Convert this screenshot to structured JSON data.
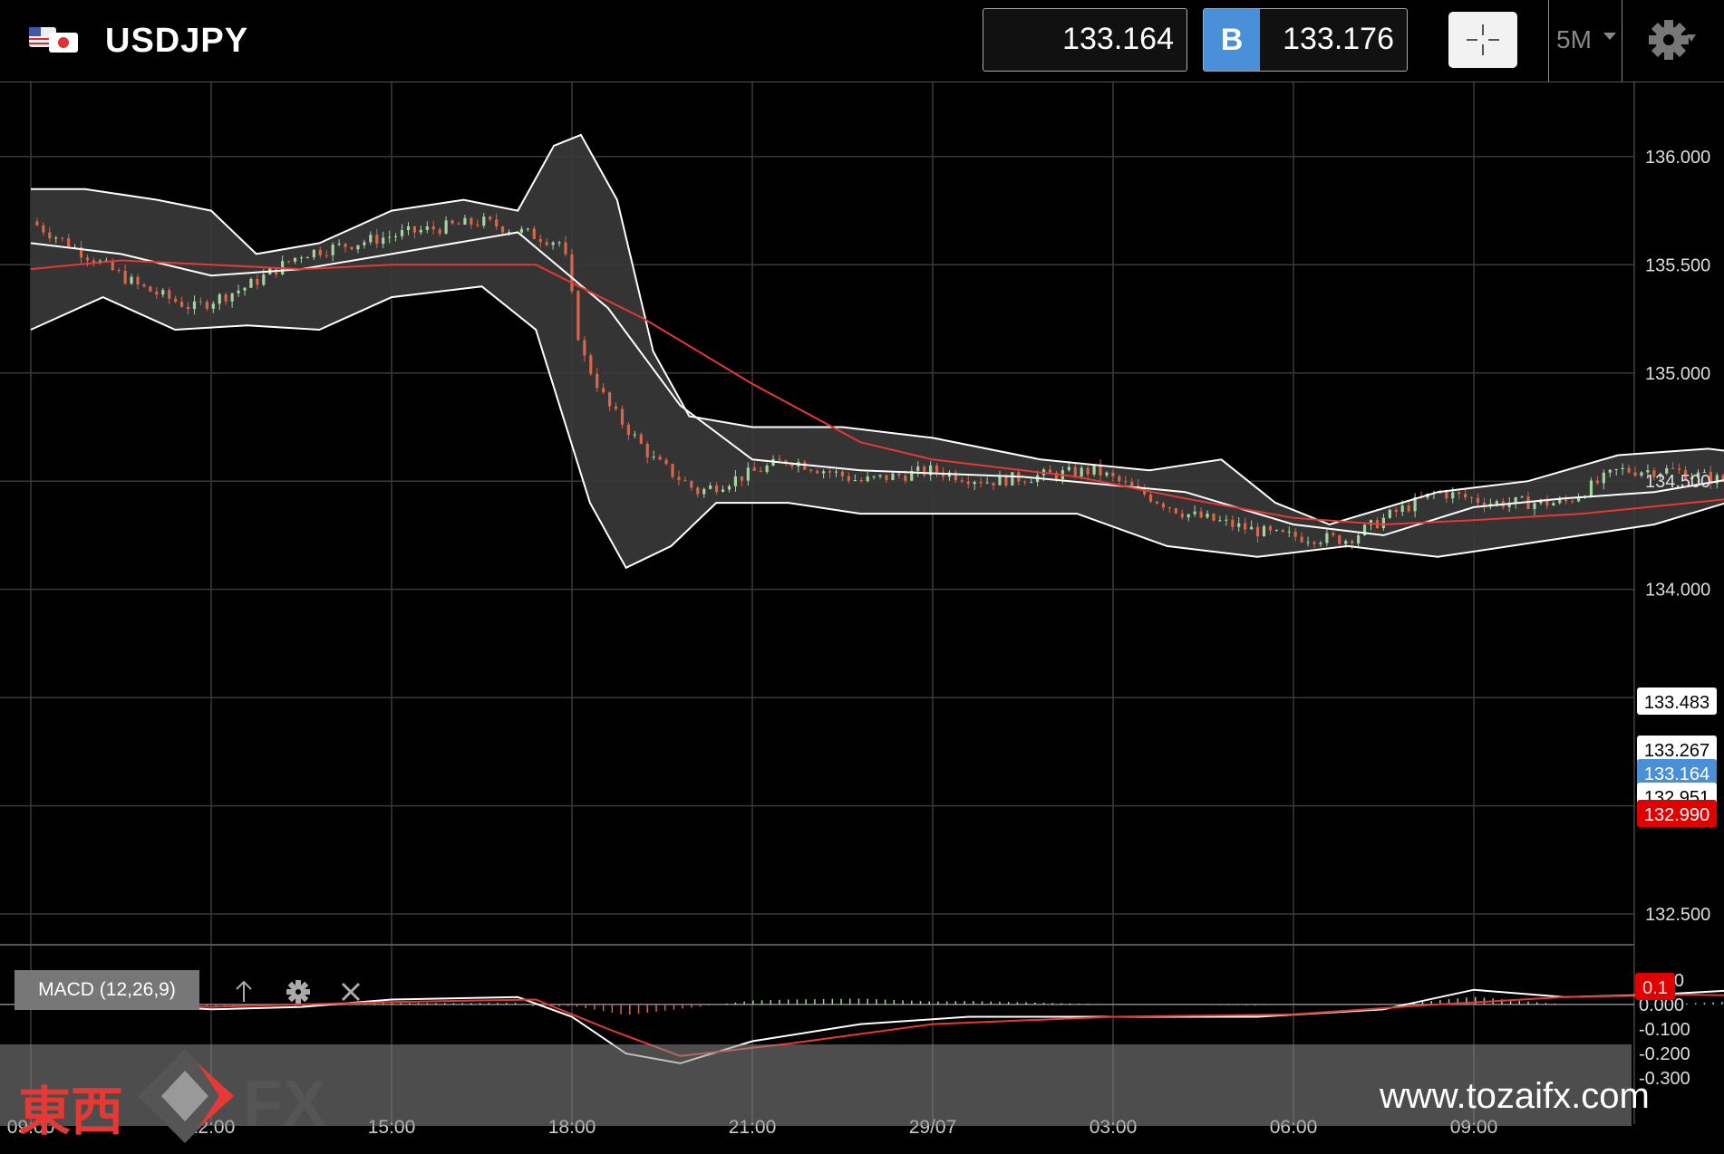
{
  "header": {
    "symbol": "USDJPY",
    "bid": "133.164",
    "ask_tag": "B",
    "ask": "133.176",
    "timeframe": "5M"
  },
  "colors": {
    "up": "#a6d4a0",
    "down": "#d9654b",
    "ma": "#e53935",
    "band": "#ffffff",
    "bid_tag": "#4a90d9",
    "low_tag": "#e00000"
  },
  "chart_data": [
    {
      "type": "candlestick",
      "y_ticks": [
        "136.000",
        "135.500",
        "135.000",
        "134.500",
        "134.000",
        "132.500"
      ],
      "x_ticks": [
        "09:00",
        "12:00",
        "15:00",
        "18:00",
        "21:00",
        "29/07",
        "03:00",
        "06:00",
        "09:00"
      ],
      "ylim": [
        132.45,
        136.15
      ],
      "price_tags": [
        {
          "label": "133.483",
          "kind": "high"
        },
        {
          "label": "133.267",
          "kind": "mid"
        },
        {
          "label": "133.164",
          "kind": "bid"
        },
        {
          "label": "132.951",
          "kind": "mid"
        },
        {
          "label": "132.990",
          "kind": "low"
        }
      ],
      "close_path": [
        [
          0,
          135.7
        ],
        [
          0.3,
          135.55
        ],
        [
          0.6,
          135.4
        ],
        [
          0.9,
          135.3
        ],
        [
          1.2,
          135.4
        ],
        [
          1.5,
          135.55
        ],
        [
          1.8,
          135.6
        ],
        [
          2.1,
          135.65
        ],
        [
          2.5,
          135.7
        ],
        [
          2.95,
          135.6
        ],
        [
          3.05,
          135.1
        ],
        [
          3.2,
          134.85
        ],
        [
          3.45,
          134.6
        ],
        [
          3.7,
          134.45
        ],
        [
          4.2,
          134.6
        ],
        [
          4.6,
          134.5
        ],
        [
          5.0,
          134.55
        ],
        [
          5.3,
          134.5
        ],
        [
          5.9,
          134.55
        ],
        [
          6.4,
          134.35
        ],
        [
          6.9,
          134.25
        ],
        [
          7.3,
          134.23
        ],
        [
          7.55,
          134.35
        ],
        [
          7.8,
          134.45
        ],
        [
          8.1,
          134.4
        ],
        [
          8.5,
          134.4
        ],
        [
          8.8,
          134.55
        ],
        [
          9.1,
          134.55
        ],
        [
          9.4,
          134.5
        ],
        [
          9.7,
          134.5
        ],
        [
          10.0,
          134.4
        ],
        [
          10.3,
          134.2
        ],
        [
          10.45,
          134.0
        ],
        [
          10.55,
          133.7
        ],
        [
          10.7,
          133.3
        ],
        [
          10.85,
          133.05
        ],
        [
          11.0,
          133.15
        ],
        [
          11.2,
          133.25
        ],
        [
          11.4,
          133.45
        ],
        [
          11.55,
          133.3
        ],
        [
          11.7,
          133.1
        ],
        [
          11.9,
          132.85
        ],
        [
          12.2,
          132.95
        ],
        [
          12.5,
          132.75
        ],
        [
          12.8,
          132.65
        ],
        [
          13.0,
          132.7
        ],
        [
          13.3,
          132.75
        ],
        [
          13.6,
          132.85
        ],
        [
          13.9,
          133.05
        ],
        [
          14.2,
          133.3
        ],
        [
          14.45,
          133.4
        ],
        [
          14.65,
          133.25
        ]
      ],
      "middle_band": [
        [
          0,
          135.6
        ],
        [
          0.5,
          135.55
        ],
        [
          1.0,
          135.45
        ],
        [
          1.5,
          135.48
        ],
        [
          2.0,
          135.55
        ],
        [
          2.7,
          135.65
        ],
        [
          3.2,
          135.3
        ],
        [
          3.6,
          134.85
        ],
        [
          4.0,
          134.6
        ],
        [
          4.6,
          134.55
        ],
        [
          5.5,
          134.52
        ],
        [
          6.4,
          134.45
        ],
        [
          7.0,
          134.3
        ],
        [
          7.5,
          134.25
        ],
        [
          8.0,
          134.38
        ],
        [
          8.5,
          134.42
        ],
        [
          9.0,
          134.45
        ],
        [
          9.5,
          134.52
        ],
        [
          10.0,
          134.45
        ],
        [
          10.4,
          134.25
        ],
        [
          10.8,
          133.85
        ],
        [
          11.2,
          133.45
        ],
        [
          11.6,
          133.15
        ],
        [
          12.0,
          133.0
        ],
        [
          12.5,
          132.85
        ],
        [
          13.0,
          132.8
        ],
        [
          13.5,
          132.85
        ],
        [
          14.0,
          133.05
        ],
        [
          14.5,
          133.3
        ],
        [
          14.65,
          133.28
        ]
      ],
      "upper_band": [
        [
          0,
          135.85
        ],
        [
          0.3,
          135.85
        ],
        [
          0.7,
          135.8
        ],
        [
          1.0,
          135.75
        ],
        [
          1.25,
          135.55
        ],
        [
          1.6,
          135.6
        ],
        [
          2.0,
          135.75
        ],
        [
          2.4,
          135.8
        ],
        [
          2.7,
          135.75
        ],
        [
          2.9,
          136.05
        ],
        [
          3.05,
          136.1
        ],
        [
          3.25,
          135.8
        ],
        [
          3.45,
          135.1
        ],
        [
          3.65,
          134.8
        ],
        [
          4.0,
          134.75
        ],
        [
          4.5,
          134.75
        ],
        [
          5.0,
          134.7
        ],
        [
          5.6,
          134.6
        ],
        [
          6.2,
          134.55
        ],
        [
          6.6,
          134.6
        ],
        [
          6.9,
          134.4
        ],
        [
          7.2,
          134.3
        ],
        [
          7.8,
          134.45
        ],
        [
          8.3,
          134.5
        ],
        [
          8.8,
          134.62
        ],
        [
          9.3,
          134.65
        ],
        [
          9.8,
          134.6
        ],
        [
          10.2,
          134.57
        ],
        [
          10.5,
          134.82
        ],
        [
          10.85,
          134.78
        ],
        [
          11.1,
          134.2
        ],
        [
          11.3,
          133.5
        ],
        [
          11.6,
          133.5
        ],
        [
          12.0,
          133.4
        ],
        [
          12.4,
          133.05
        ],
        [
          12.8,
          132.95
        ],
        [
          13.3,
          132.9
        ],
        [
          13.7,
          133.0
        ],
        [
          14.0,
          133.3
        ],
        [
          14.3,
          133.55
        ],
        [
          14.65,
          133.48
        ]
      ],
      "lower_band": [
        [
          0,
          135.2
        ],
        [
          0.4,
          135.35
        ],
        [
          0.8,
          135.2
        ],
        [
          1.2,
          135.22
        ],
        [
          1.6,
          135.2
        ],
        [
          2.0,
          135.35
        ],
        [
          2.5,
          135.4
        ],
        [
          2.8,
          135.2
        ],
        [
          3.1,
          134.4
        ],
        [
          3.3,
          134.1
        ],
        [
          3.55,
          134.2
        ],
        [
          3.8,
          134.4
        ],
        [
          4.2,
          134.4
        ],
        [
          4.6,
          134.35
        ],
        [
          5.2,
          134.35
        ],
        [
          5.8,
          134.35
        ],
        [
          6.3,
          134.2
        ],
        [
          6.8,
          134.15
        ],
        [
          7.3,
          134.2
        ],
        [
          7.8,
          134.15
        ],
        [
          8.2,
          134.2
        ],
        [
          8.6,
          134.25
        ],
        [
          9.0,
          134.3
        ],
        [
          9.4,
          134.4
        ],
        [
          9.8,
          134.45
        ],
        [
          10.2,
          134.4
        ],
        [
          10.5,
          134.1
        ],
        [
          10.85,
          133.4
        ],
        [
          11.05,
          132.9
        ],
        [
          11.3,
          132.8
        ],
        [
          11.6,
          133.0
        ],
        [
          11.9,
          132.8
        ],
        [
          12.3,
          132.55
        ],
        [
          12.7,
          132.5
        ],
        [
          13.0,
          132.55
        ],
        [
          13.3,
          132.68
        ],
        [
          13.7,
          132.6
        ],
        [
          14.0,
          132.62
        ],
        [
          14.3,
          132.8
        ],
        [
          14.65,
          133.0
        ]
      ],
      "moving_average": [
        [
          0,
          135.48
        ],
        [
          0.5,
          135.52
        ],
        [
          1.0,
          135.5
        ],
        [
          1.5,
          135.48
        ],
        [
          2.0,
          135.5
        ],
        [
          2.8,
          135.5
        ],
        [
          3.4,
          135.25
        ],
        [
          4.0,
          134.95
        ],
        [
          4.6,
          134.68
        ],
        [
          5.0,
          134.6
        ],
        [
          5.8,
          134.52
        ],
        [
          6.4,
          134.42
        ],
        [
          7.0,
          134.33
        ],
        [
          7.5,
          134.3
        ],
        [
          8.0,
          134.32
        ],
        [
          8.6,
          134.35
        ],
        [
          9.2,
          134.4
        ],
        [
          9.8,
          134.45
        ],
        [
          10.3,
          134.45
        ],
        [
          10.8,
          134.3
        ],
        [
          11.2,
          134.05
        ],
        [
          11.6,
          133.72
        ],
        [
          12.0,
          133.38
        ],
        [
          12.5,
          133.05
        ],
        [
          13.0,
          132.92
        ],
        [
          13.5,
          132.95
        ],
        [
          14.0,
          132.88
        ],
        [
          14.65,
          132.99
        ]
      ]
    },
    {
      "type": "macd",
      "name": "MACD (12,26,9)",
      "y_ticks": [
        "0.100",
        "0.000",
        "-0.100",
        "-0.200",
        "-0.300"
      ],
      "ylim": [
        -0.34,
        0.14
      ],
      "value_tag": "0.1",
      "macd": [
        [
          0,
          0.02
        ],
        [
          1.0,
          -0.02
        ],
        [
          1.5,
          -0.01
        ],
        [
          2.0,
          0.02
        ],
        [
          2.7,
          0.03
        ],
        [
          3.0,
          -0.05
        ],
        [
          3.3,
          -0.2
        ],
        [
          3.6,
          -0.24
        ],
        [
          4.0,
          -0.15
        ],
        [
          4.6,
          -0.08
        ],
        [
          5.2,
          -0.05
        ],
        [
          6.0,
          -0.05
        ],
        [
          6.8,
          -0.05
        ],
        [
          7.5,
          -0.02
        ],
        [
          8.0,
          0.06
        ],
        [
          8.5,
          0.03
        ],
        [
          9.0,
          0.04
        ],
        [
          9.5,
          0.06
        ],
        [
          10.0,
          0.03
        ],
        [
          10.4,
          -0.05
        ],
        [
          10.8,
          -0.2
        ],
        [
          11.1,
          -0.28
        ],
        [
          11.5,
          -0.22
        ],
        [
          11.9,
          -0.18
        ],
        [
          12.5,
          -0.16
        ],
        [
          13.0,
          -0.1
        ],
        [
          13.5,
          -0.04
        ],
        [
          14.0,
          0.04
        ],
        [
          14.3,
          0.09
        ],
        [
          14.65,
          0.07
        ]
      ],
      "signal": [
        [
          0,
          0.01
        ],
        [
          1.0,
          -0.01
        ],
        [
          2.0,
          0.01
        ],
        [
          2.8,
          0.02
        ],
        [
          3.2,
          -0.1
        ],
        [
          3.6,
          -0.21
        ],
        [
          4.2,
          -0.16
        ],
        [
          5.0,
          -0.08
        ],
        [
          6.0,
          -0.05
        ],
        [
          7.0,
          -0.04
        ],
        [
          7.8,
          0.0
        ],
        [
          8.5,
          0.03
        ],
        [
          9.2,
          0.04
        ],
        [
          10.0,
          0.03
        ],
        [
          10.6,
          -0.08
        ],
        [
          11.0,
          -0.19
        ],
        [
          11.4,
          -0.26
        ],
        [
          11.9,
          -0.2
        ],
        [
          12.5,
          -0.17
        ],
        [
          13.2,
          -0.1
        ],
        [
          13.8,
          -0.02
        ],
        [
          14.3,
          0.06
        ],
        [
          14.65,
          0.07
        ]
      ]
    }
  ],
  "watermark": {
    "kanji": "東西",
    "fx": "FX",
    "url": "www.tozaifx.com"
  }
}
